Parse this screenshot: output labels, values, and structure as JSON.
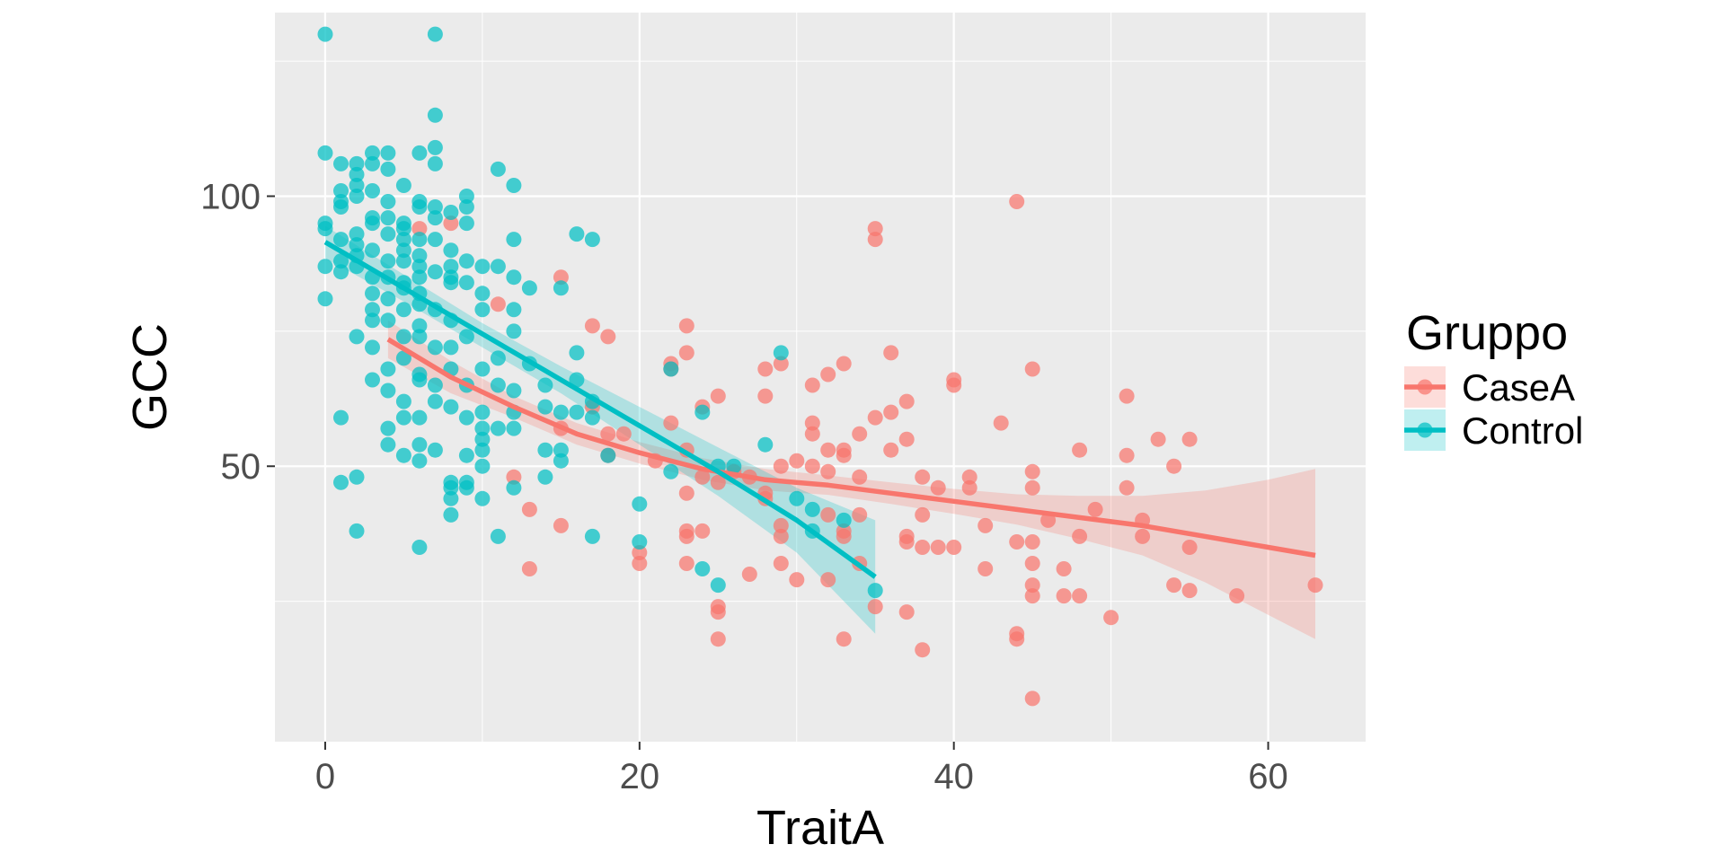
{
  "chart_data": {
    "type": "scatter",
    "xlabel": "TraitA",
    "ylabel": "GCC",
    "xlim": [
      -3.2,
      66.2
    ],
    "ylim": [
      -1,
      134
    ],
    "x_ticks": [
      0,
      20,
      40,
      60
    ],
    "y_ticks": [
      50,
      100
    ],
    "grid": true,
    "legend": {
      "title": "Gruppo",
      "position": "right"
    },
    "series": [
      {
        "name": "CaseA",
        "color": "#F8766D",
        "points": [
          [
            6,
            94
          ],
          [
            8,
            95
          ],
          [
            11,
            80
          ],
          [
            12,
            48
          ],
          [
            13,
            42
          ],
          [
            13,
            31
          ],
          [
            15,
            85
          ],
          [
            15,
            57
          ],
          [
            15,
            39
          ],
          [
            17,
            76
          ],
          [
            17,
            61
          ],
          [
            18,
            74
          ],
          [
            18,
            52
          ],
          [
            18,
            56
          ],
          [
            19,
            56
          ],
          [
            20,
            34
          ],
          [
            20,
            32
          ],
          [
            21,
            51
          ],
          [
            22,
            69
          ],
          [
            22,
            58
          ],
          [
            22,
            68
          ],
          [
            23,
            76
          ],
          [
            23,
            71
          ],
          [
            23,
            53
          ],
          [
            23,
            45
          ],
          [
            23,
            38
          ],
          [
            23,
            37
          ],
          [
            23,
            32
          ],
          [
            24,
            61
          ],
          [
            24,
            38
          ],
          [
            24,
            48
          ],
          [
            25,
            63
          ],
          [
            25,
            47
          ],
          [
            25,
            24
          ],
          [
            25,
            23
          ],
          [
            25,
            18
          ],
          [
            26,
            49
          ],
          [
            27,
            30
          ],
          [
            27,
            48
          ],
          [
            28,
            68
          ],
          [
            28,
            63
          ],
          [
            28,
            45
          ],
          [
            28,
            44
          ],
          [
            29,
            69
          ],
          [
            29,
            50
          ],
          [
            29,
            39
          ],
          [
            29,
            37
          ],
          [
            29,
            32
          ],
          [
            30,
            51
          ],
          [
            30,
            29
          ],
          [
            31,
            65
          ],
          [
            31,
            58
          ],
          [
            31,
            56
          ],
          [
            31,
            50
          ],
          [
            32,
            67
          ],
          [
            32,
            53
          ],
          [
            32,
            49
          ],
          [
            32,
            41
          ],
          [
            32,
            29
          ],
          [
            33,
            69
          ],
          [
            33,
            53
          ],
          [
            33,
            52
          ],
          [
            33,
            38
          ],
          [
            33,
            37
          ],
          [
            33,
            18
          ],
          [
            34,
            56
          ],
          [
            34,
            48
          ],
          [
            34,
            41
          ],
          [
            34,
            32
          ],
          [
            35,
            94
          ],
          [
            35,
            92
          ],
          [
            35,
            59
          ],
          [
            35,
            24
          ],
          [
            36,
            71
          ],
          [
            36,
            60
          ],
          [
            36,
            53
          ],
          [
            37,
            62
          ],
          [
            37,
            55
          ],
          [
            37,
            37
          ],
          [
            37,
            36
          ],
          [
            37,
            23
          ],
          [
            38,
            48
          ],
          [
            38,
            41
          ],
          [
            38,
            35
          ],
          [
            38,
            16
          ],
          [
            39,
            46
          ],
          [
            39,
            35
          ],
          [
            40,
            66
          ],
          [
            40,
            65
          ],
          [
            40,
            35
          ],
          [
            41,
            48
          ],
          [
            41,
            46
          ],
          [
            42,
            39
          ],
          [
            42,
            31
          ],
          [
            43,
            58
          ],
          [
            44,
            99
          ],
          [
            44,
            36
          ],
          [
            44,
            19
          ],
          [
            44,
            18
          ],
          [
            45,
            68
          ],
          [
            45,
            49
          ],
          [
            45,
            46
          ],
          [
            45,
            36
          ],
          [
            45,
            32
          ],
          [
            45,
            28
          ],
          [
            45,
            26
          ],
          [
            45,
            7
          ],
          [
            46,
            40
          ],
          [
            47,
            31
          ],
          [
            47,
            26
          ],
          [
            48,
            53
          ],
          [
            48,
            37
          ],
          [
            48,
            26
          ],
          [
            49,
            42
          ],
          [
            50,
            22
          ],
          [
            51,
            63
          ],
          [
            51,
            52
          ],
          [
            51,
            46
          ],
          [
            52,
            40
          ],
          [
            52,
            37
          ],
          [
            53,
            55
          ],
          [
            54,
            50
          ],
          [
            54,
            28
          ],
          [
            55,
            55
          ],
          [
            55,
            35
          ],
          [
            55,
            27
          ],
          [
            58,
            26
          ],
          [
            63,
            28
          ]
        ],
        "trend": {
          "x": [
            4,
            8,
            12,
            16,
            20,
            24,
            28,
            32,
            36,
            40,
            44,
            48,
            52,
            56,
            60,
            63
          ],
          "y": [
            73.5,
            66.5,
            61,
            56,
            52.5,
            49.5,
            47.5,
            46.5,
            45,
            43.5,
            42,
            40.5,
            39,
            37,
            35,
            33.5
          ],
          "upper": [
            77,
            69.5,
            63,
            58,
            54.5,
            51.5,
            49.5,
            48.3,
            47,
            45.8,
            44.8,
            44.5,
            44.5,
            45.5,
            47.5,
            49.5
          ],
          "lower": [
            70,
            63.5,
            59,
            54,
            50.5,
            47.5,
            45.5,
            44.7,
            43,
            41.2,
            39.2,
            36.5,
            33.5,
            28.5,
            22.5,
            18
          ]
        }
      },
      {
        "name": "Control",
        "color": "#00BFC4",
        "points": [
          [
            0,
            130
          ],
          [
            0,
            108
          ],
          [
            0,
            95
          ],
          [
            0,
            94
          ],
          [
            0,
            87
          ],
          [
            0,
            81
          ],
          [
            1,
            106
          ],
          [
            1,
            101
          ],
          [
            1,
            99
          ],
          [
            1,
            98
          ],
          [
            1,
            92
          ],
          [
            1,
            88
          ],
          [
            1,
            86
          ],
          [
            1,
            59
          ],
          [
            1,
            47
          ],
          [
            2,
            106
          ],
          [
            2,
            104
          ],
          [
            2,
            102
          ],
          [
            2,
            100
          ],
          [
            2,
            93
          ],
          [
            2,
            91
          ],
          [
            2,
            89
          ],
          [
            2,
            87
          ],
          [
            2,
            74
          ],
          [
            2,
            48
          ],
          [
            2,
            38
          ],
          [
            3,
            108
          ],
          [
            3,
            106
          ],
          [
            3,
            101
          ],
          [
            3,
            96
          ],
          [
            3,
            95
          ],
          [
            3,
            90
          ],
          [
            3,
            85
          ],
          [
            3,
            82
          ],
          [
            3,
            79
          ],
          [
            3,
            77
          ],
          [
            3,
            72
          ],
          [
            3,
            66
          ],
          [
            4,
            108
          ],
          [
            4,
            105
          ],
          [
            4,
            99
          ],
          [
            4,
            96
          ],
          [
            4,
            93
          ],
          [
            4,
            88
          ],
          [
            4,
            85
          ],
          [
            4,
            81
          ],
          [
            4,
            77
          ],
          [
            4,
            68
          ],
          [
            4,
            64
          ],
          [
            4,
            57
          ],
          [
            4,
            54
          ],
          [
            5,
            102
          ],
          [
            5,
            95
          ],
          [
            5,
            94
          ],
          [
            5,
            92
          ],
          [
            5,
            90
          ],
          [
            5,
            88
          ],
          [
            5,
            84
          ],
          [
            5,
            83
          ],
          [
            5,
            79
          ],
          [
            5,
            74
          ],
          [
            5,
            70
          ],
          [
            5,
            62
          ],
          [
            5,
            59
          ],
          [
            5,
            52
          ],
          [
            6,
            108
          ],
          [
            6,
            99
          ],
          [
            6,
            98
          ],
          [
            6,
            92
          ],
          [
            6,
            89
          ],
          [
            6,
            87
          ],
          [
            6,
            85
          ],
          [
            6,
            82
          ],
          [
            6,
            80
          ],
          [
            6,
            76
          ],
          [
            6,
            74
          ],
          [
            6,
            67
          ],
          [
            6,
            66
          ],
          [
            6,
            59
          ],
          [
            6,
            54
          ],
          [
            6,
            51
          ],
          [
            6,
            35
          ],
          [
            7,
            130
          ],
          [
            7,
            115
          ],
          [
            7,
            109
          ],
          [
            7,
            106
          ],
          [
            7,
            98
          ],
          [
            7,
            96
          ],
          [
            7,
            92
          ],
          [
            7,
            86
          ],
          [
            7,
            79
          ],
          [
            7,
            72
          ],
          [
            7,
            65
          ],
          [
            7,
            62
          ],
          [
            7,
            53
          ],
          [
            8,
            97
          ],
          [
            8,
            90
          ],
          [
            8,
            87
          ],
          [
            8,
            85
          ],
          [
            8,
            84
          ],
          [
            8,
            77
          ],
          [
            8,
            72
          ],
          [
            8,
            68
          ],
          [
            8,
            61
          ],
          [
            8,
            47
          ],
          [
            8,
            46
          ],
          [
            8,
            44
          ],
          [
            8,
            41
          ],
          [
            9,
            100
          ],
          [
            9,
            98
          ],
          [
            9,
            95
          ],
          [
            9,
            88
          ],
          [
            9,
            84
          ],
          [
            9,
            74
          ],
          [
            9,
            65
          ],
          [
            9,
            59
          ],
          [
            9,
            52
          ],
          [
            9,
            47
          ],
          [
            9,
            46
          ],
          [
            10,
            87
          ],
          [
            10,
            82
          ],
          [
            10,
            79
          ],
          [
            10,
            68
          ],
          [
            10,
            60
          ],
          [
            10,
            57
          ],
          [
            10,
            55
          ],
          [
            10,
            53
          ],
          [
            10,
            50
          ],
          [
            10,
            44
          ],
          [
            11,
            105
          ],
          [
            11,
            87
          ],
          [
            11,
            70
          ],
          [
            11,
            65
          ],
          [
            11,
            57
          ],
          [
            11,
            37
          ],
          [
            12,
            102
          ],
          [
            12,
            92
          ],
          [
            12,
            85
          ],
          [
            12,
            79
          ],
          [
            12,
            75
          ],
          [
            12,
            64
          ],
          [
            12,
            60
          ],
          [
            12,
            57
          ],
          [
            12,
            46
          ],
          [
            13,
            83
          ],
          [
            13,
            69
          ],
          [
            14,
            65
          ],
          [
            14,
            61
          ],
          [
            14,
            53
          ],
          [
            14,
            48
          ],
          [
            15,
            83
          ],
          [
            15,
            60
          ],
          [
            15,
            53
          ],
          [
            15,
            51
          ],
          [
            16,
            93
          ],
          [
            16,
            71
          ],
          [
            16,
            66
          ],
          [
            16,
            60
          ],
          [
            17,
            92
          ],
          [
            17,
            62
          ],
          [
            17,
            59
          ],
          [
            17,
            37
          ],
          [
            18,
            52
          ],
          [
            20,
            43
          ],
          [
            20,
            36
          ],
          [
            22,
            68
          ],
          [
            22,
            49
          ],
          [
            24,
            60
          ],
          [
            24,
            31
          ],
          [
            25,
            50
          ],
          [
            25,
            28
          ],
          [
            26,
            50
          ],
          [
            28,
            54
          ],
          [
            29,
            71
          ],
          [
            30,
            44
          ],
          [
            31,
            42
          ],
          [
            31,
            38
          ],
          [
            33,
            40
          ],
          [
            35,
            27
          ]
        ],
        "trend": {
          "x": [
            0,
            5,
            10,
            15,
            20,
            25,
            30,
            35
          ],
          "y": [
            91.5,
            83,
            74.5,
            66,
            57.5,
            49,
            40,
            29.5
          ],
          "upper": [
            94.5,
            85.5,
            76.5,
            68.5,
            61,
            53.5,
            46,
            40
          ],
          "lower": [
            88.5,
            80.5,
            72,
            63.5,
            54,
            44.5,
            34,
            19
          ]
        }
      }
    ]
  }
}
